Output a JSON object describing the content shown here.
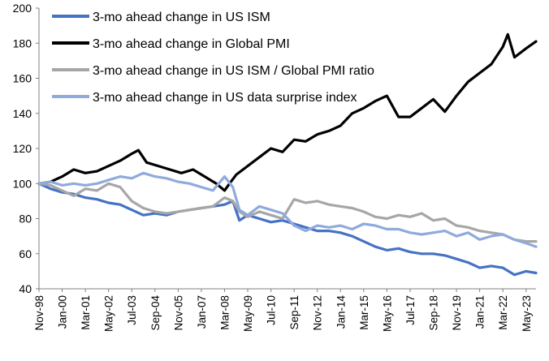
{
  "chart_data": {
    "type": "line",
    "title": "",
    "xlabel": "",
    "ylabel": "",
    "ylim": [
      40,
      200
    ],
    "yticks": [
      40,
      60,
      80,
      100,
      120,
      140,
      160,
      180,
      200
    ],
    "xlim": [
      "1998-11",
      "2023-11"
    ],
    "xtick_labels": [
      "Nov-98",
      "Jan-00",
      "Mar-01",
      "May-02",
      "Jul-03",
      "Sep-04",
      "Nov-05",
      "Jan-07",
      "Mar-08",
      "May-09",
      "Jul-10",
      "Sep-11",
      "Nov-12",
      "Jan-14",
      "Mar-15",
      "May-16",
      "Jul-17",
      "Sep-18",
      "Nov-19",
      "Jan-21",
      "Mar-22",
      "May-23"
    ],
    "grid": false,
    "legend_position": "top-left",
    "series": [
      {
        "name": "3-mo ahead change in US ISM",
        "color": "#4472c4",
        "points": [
          [
            "1998-11",
            100
          ],
          [
            "1999-06",
            97
          ],
          [
            "2000-01",
            95
          ],
          [
            "2000-08",
            94
          ],
          [
            "2001-03",
            92
          ],
          [
            "2001-10",
            91
          ],
          [
            "2002-05",
            89
          ],
          [
            "2002-12",
            88
          ],
          [
            "2003-07",
            85
          ],
          [
            "2004-02",
            82
          ],
          [
            "2004-09",
            83
          ],
          [
            "2005-04",
            82
          ],
          [
            "2005-11",
            84
          ],
          [
            "2006-06",
            85
          ],
          [
            "2007-01",
            86
          ],
          [
            "2007-08",
            87
          ],
          [
            "2008-03",
            88
          ],
          [
            "2008-08",
            90
          ],
          [
            "2008-12",
            79
          ],
          [
            "2009-05",
            82
          ],
          [
            "2009-12",
            80
          ],
          [
            "2010-07",
            78
          ],
          [
            "2011-02",
            79
          ],
          [
            "2011-09",
            77
          ],
          [
            "2012-04",
            75
          ],
          [
            "2012-11",
            73
          ],
          [
            "2013-06",
            73
          ],
          [
            "2014-01",
            72
          ],
          [
            "2014-08",
            70
          ],
          [
            "2015-03",
            67
          ],
          [
            "2015-10",
            64
          ],
          [
            "2016-05",
            62
          ],
          [
            "2016-12",
            63
          ],
          [
            "2017-07",
            61
          ],
          [
            "2018-02",
            60
          ],
          [
            "2018-09",
            60
          ],
          [
            "2019-04",
            59
          ],
          [
            "2019-11",
            57
          ],
          [
            "2020-06",
            55
          ],
          [
            "2021-01",
            52
          ],
          [
            "2021-08",
            53
          ],
          [
            "2022-03",
            52
          ],
          [
            "2022-10",
            48
          ],
          [
            "2023-05",
            50
          ],
          [
            "2023-11",
            49
          ]
        ]
      },
      {
        "name": "3-mo ahead change in Global PMI",
        "color": "#000000",
        "points": [
          [
            "1998-11",
            100
          ],
          [
            "1999-06",
            101
          ],
          [
            "2000-01",
            104
          ],
          [
            "2000-08",
            108
          ],
          [
            "2001-03",
            106
          ],
          [
            "2001-10",
            107
          ],
          [
            "2002-05",
            110
          ],
          [
            "2002-12",
            113
          ],
          [
            "2003-07",
            117
          ],
          [
            "2003-11",
            119
          ],
          [
            "2004-04",
            112
          ],
          [
            "2004-11",
            110
          ],
          [
            "2005-06",
            108
          ],
          [
            "2006-01",
            106
          ],
          [
            "2006-08",
            108
          ],
          [
            "2007-03",
            104
          ],
          [
            "2007-10",
            100
          ],
          [
            "2008-03",
            96
          ],
          [
            "2008-06",
            100
          ],
          [
            "2008-10",
            105
          ],
          [
            "2009-05",
            110
          ],
          [
            "2009-12",
            115
          ],
          [
            "2010-07",
            120
          ],
          [
            "2011-02",
            118
          ],
          [
            "2011-09",
            125
          ],
          [
            "2012-04",
            124
          ],
          [
            "2012-11",
            128
          ],
          [
            "2013-06",
            130
          ],
          [
            "2014-01",
            133
          ],
          [
            "2014-08",
            140
          ],
          [
            "2015-03",
            143
          ],
          [
            "2015-10",
            147
          ],
          [
            "2016-05",
            150
          ],
          [
            "2016-12",
            138
          ],
          [
            "2017-07",
            138
          ],
          [
            "2018-02",
            143
          ],
          [
            "2018-09",
            148
          ],
          [
            "2019-04",
            141
          ],
          [
            "2019-11",
            150
          ],
          [
            "2020-06",
            158
          ],
          [
            "2021-01",
            163
          ],
          [
            "2021-08",
            168
          ],
          [
            "2022-03",
            178
          ],
          [
            "2022-06",
            185
          ],
          [
            "2022-10",
            172
          ],
          [
            "2023-05",
            177
          ],
          [
            "2023-11",
            181
          ]
        ]
      },
      {
        "name": "3-mo ahead change in US ISM / Global PMI ratio",
        "color": "#a6a6a6",
        "points": [
          [
            "1998-11",
            100
          ],
          [
            "1999-06",
            99
          ],
          [
            "2000-01",
            96
          ],
          [
            "2000-08",
            93
          ],
          [
            "2001-03",
            97
          ],
          [
            "2001-10",
            96
          ],
          [
            "2002-05",
            100
          ],
          [
            "2002-12",
            98
          ],
          [
            "2003-07",
            90
          ],
          [
            "2004-02",
            86
          ],
          [
            "2004-09",
            84
          ],
          [
            "2005-04",
            83
          ],
          [
            "2005-11",
            84
          ],
          [
            "2006-06",
            85
          ],
          [
            "2007-01",
            86
          ],
          [
            "2007-08",
            87
          ],
          [
            "2008-03",
            92
          ],
          [
            "2008-08",
            90
          ],
          [
            "2008-12",
            84
          ],
          [
            "2009-05",
            81
          ],
          [
            "2009-12",
            84
          ],
          [
            "2010-07",
            82
          ],
          [
            "2011-02",
            80
          ],
          [
            "2011-09",
            91
          ],
          [
            "2012-04",
            89
          ],
          [
            "2012-11",
            90
          ],
          [
            "2013-06",
            88
          ],
          [
            "2014-01",
            87
          ],
          [
            "2014-08",
            86
          ],
          [
            "2015-03",
            84
          ],
          [
            "2015-10",
            81
          ],
          [
            "2016-05",
            80
          ],
          [
            "2016-12",
            82
          ],
          [
            "2017-07",
            81
          ],
          [
            "2018-02",
            83
          ],
          [
            "2018-09",
            79
          ],
          [
            "2019-04",
            80
          ],
          [
            "2019-11",
            76
          ],
          [
            "2020-06",
            75
          ],
          [
            "2021-01",
            73
          ],
          [
            "2021-08",
            72
          ],
          [
            "2022-03",
            71
          ],
          [
            "2022-10",
            68
          ],
          [
            "2023-05",
            67
          ],
          [
            "2023-11",
            67
          ]
        ]
      },
      {
        "name": "3-mo ahead change in US data surprise index",
        "color": "#8faadc",
        "points": [
          [
            "1998-11",
            100
          ],
          [
            "1999-06",
            101
          ],
          [
            "2000-01",
            99
          ],
          [
            "2000-08",
            100
          ],
          [
            "2001-03",
            99
          ],
          [
            "2001-10",
            100
          ],
          [
            "2002-05",
            102
          ],
          [
            "2002-12",
            104
          ],
          [
            "2003-07",
            103
          ],
          [
            "2004-02",
            106
          ],
          [
            "2004-09",
            104
          ],
          [
            "2005-04",
            103
          ],
          [
            "2005-11",
            101
          ],
          [
            "2006-06",
            100
          ],
          [
            "2007-01",
            98
          ],
          [
            "2007-08",
            96
          ],
          [
            "2008-03",
            104
          ],
          [
            "2008-08",
            98
          ],
          [
            "2008-12",
            85
          ],
          [
            "2009-05",
            82
          ],
          [
            "2009-12",
            87
          ],
          [
            "2010-07",
            85
          ],
          [
            "2011-02",
            83
          ],
          [
            "2011-09",
            76
          ],
          [
            "2012-04",
            73
          ],
          [
            "2012-11",
            76
          ],
          [
            "2013-06",
            75
          ],
          [
            "2014-01",
            76
          ],
          [
            "2014-08",
            74
          ],
          [
            "2015-03",
            77
          ],
          [
            "2015-10",
            76
          ],
          [
            "2016-05",
            74
          ],
          [
            "2016-12",
            74
          ],
          [
            "2017-07",
            72
          ],
          [
            "2018-02",
            71
          ],
          [
            "2018-09",
            72
          ],
          [
            "2019-04",
            73
          ],
          [
            "2019-11",
            70
          ],
          [
            "2020-06",
            72
          ],
          [
            "2021-01",
            68
          ],
          [
            "2021-08",
            70
          ],
          [
            "2022-03",
            71
          ],
          [
            "2022-10",
            68
          ],
          [
            "2023-05",
            66
          ],
          [
            "2023-11",
            64
          ]
        ]
      }
    ]
  }
}
